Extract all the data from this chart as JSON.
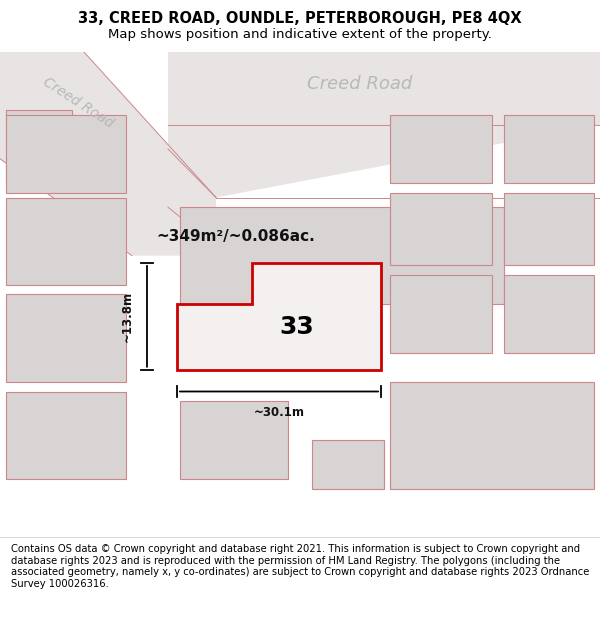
{
  "title": "33, CREED ROAD, OUNDLE, PETERBOROUGH, PE8 4QX",
  "subtitle": "Map shows position and indicative extent of the property.",
  "footer": "Contains OS data © Crown copyright and database right 2021. This information is subject to Crown copyright and database rights 2023 and is reproduced with the permission of HM Land Registry. The polygons (including the associated geometry, namely x, y co-ordinates) are subject to Crown copyright and database rights 2023 Ordnance Survey 100026316.",
  "area_text": "~349m²/~0.086ac.",
  "dim_h": "~13.8m",
  "dim_w": "~30.1m",
  "number_label": "33",
  "creed_road_label1": "Creed Road",
  "creed_road_label2": "Creed Road",
  "title_fontsize": 10.5,
  "subtitle_fontsize": 9.5,
  "footer_fontsize": 7.2,
  "map_bg": "#f0eded",
  "road_surface": "#e8e4e4",
  "plot_fill": "#d8d4d4",
  "plot_edge": "#cc8888",
  "highlight_fill": "#f5f0f0",
  "highlight_edge": "#cc0000",
  "road_label_color": "#b8b8b8",
  "dim_color": "#111111",
  "area_label_color": "#111111"
}
